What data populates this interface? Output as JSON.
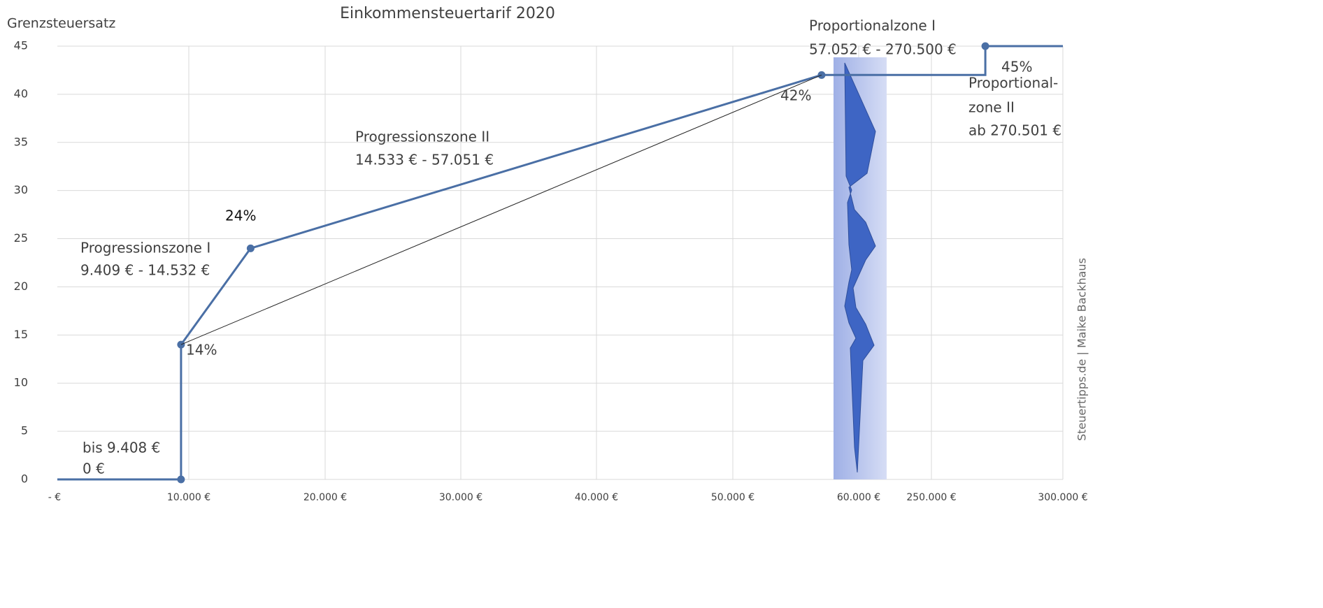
{
  "chart_data": {
    "type": "line",
    "title": "Einkommensteuertarif 2020",
    "ylabel": "Grenzsteuersatz",
    "xlim": [
      0,
      300000
    ],
    "ylim": [
      0,
      45
    ],
    "xticks": [
      {
        "value": 0,
        "label": "-  €"
      },
      {
        "value": 10000,
        "label": "10.000 €"
      },
      {
        "value": 20000,
        "label": "20.000 €"
      },
      {
        "value": 30000,
        "label": "30.000 €"
      },
      {
        "value": 40000,
        "label": "40.000 €"
      },
      {
        "value": 50000,
        "label": "50.000 €"
      },
      {
        "value": 60000,
        "label": "60.000 €"
      },
      {
        "value": 250000,
        "label": "250.000 €"
      },
      {
        "value": 300000,
        "label": "300.000 €"
      }
    ],
    "yticks": [
      0,
      5,
      10,
      15,
      20,
      25,
      30,
      35,
      40,
      45
    ],
    "grid": true,
    "series": [
      {
        "color": "#4a6fa5",
        "markers": false,
        "width": 3,
        "x": [
          0,
          9408,
          9409,
          14533,
          57052,
          270500,
          270501,
          300000
        ],
        "values": [
          0,
          0,
          14,
          24,
          42,
          42,
          45,
          45
        ]
      },
      {
        "color": "#4a6fa5",
        "markers": true,
        "width": 0,
        "x": [
          9408,
          9409,
          14533,
          57052,
          270501
        ],
        "values": [
          0,
          14,
          24,
          42,
          45
        ]
      },
      {
        "color": "#222222",
        "markers": false,
        "width": 1,
        "x": [
          9409,
          57052
        ],
        "values": [
          14,
          42
        ]
      }
    ],
    "annotations": [
      "bis 9.408 €",
      "0 €",
      "Progressionszone I",
      "9.409 € - 14.532 €",
      "14%",
      "24%",
      "Progressionszone II",
      "14.533 € - 57.051 €",
      "42%",
      "Proportionalzone I",
      "57.052 € - 270.500 €",
      "45%",
      "Proportional-",
      "zone II",
      "ab 270.501 €",
      "Steuertipps.de | Maike Backhaus"
    ]
  }
}
